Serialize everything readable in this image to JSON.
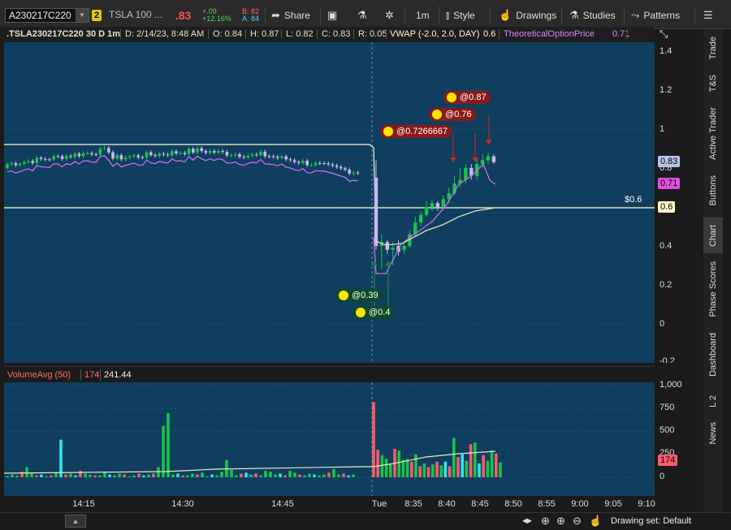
{
  "toolbar": {
    "symbol": "A230217C220",
    "linked_badge": "2",
    "ticker": "TSLA 100 ...",
    "last_price": ".83",
    "change_abs": "+.09",
    "change_pct": "+12.16%",
    "bid": "B: 82",
    "ask": "A: 84",
    "share_label": "Share",
    "timeframe": "1m",
    "style_label": "Style",
    "drawings_label": "Drawings",
    "studies_label": "Studies",
    "patterns_label": "Patterns"
  },
  "infobar": {
    "symbol_desc": ".TSLA230217C220 30 D 1m",
    "date": "D: 2/14/23, 8:48 AM",
    "open": "O: 0.84",
    "high": "H: 0.87",
    "low": "L: 0.82",
    "close": "C: 0.83",
    "range": "R: 0.05",
    "vwap": "VWAP (-2.0, 2.0, DAY)",
    "vwap_value": "0.6",
    "theo": "TheoreticalOptionPrice",
    "theo_value": "0.71"
  },
  "price_axis": {
    "ticks": [
      "1.4",
      "1.2",
      "1",
      "0.8",
      "0.6",
      "0.4",
      "0.2",
      "0",
      "-0.2"
    ],
    "tag_last": "0.83",
    "tag_theo": "0.71",
    "tag_vwap": "0.6",
    "line_label": "$0.6"
  },
  "orders": {
    "buy1": "@0.39",
    "buy2": "@0.4",
    "sell1": "@0.7266667",
    "sell2": "@0.76",
    "sell3": "@0.87"
  },
  "volume": {
    "study": "VolumeAvg (50)",
    "value": "174",
    "avg": "241.44",
    "ticks": [
      "1,000",
      "750",
      "500",
      "250",
      "0"
    ],
    "tag": "174"
  },
  "time_axis": [
    "14:15",
    "14:30",
    "14:45",
    "Tue",
    "8:35",
    "8:40",
    "8:45",
    "8:50",
    "8:55",
    "9:00",
    "9:05",
    "9:10"
  ],
  "sidebar": [
    "Trade",
    "T&S",
    "Active Trader",
    "Buttons",
    "Chart",
    "Phase Scores",
    "Dashboard",
    "L 2",
    "News"
  ],
  "bottom": {
    "drawing_set": "Drawing set: Default"
  },
  "colors": {
    "up": "#19c34a",
    "down": "#ff5a6a",
    "bg": "#0f3e5e",
    "vwap": "#fffbd0",
    "theo": "#c86ee8"
  }
}
